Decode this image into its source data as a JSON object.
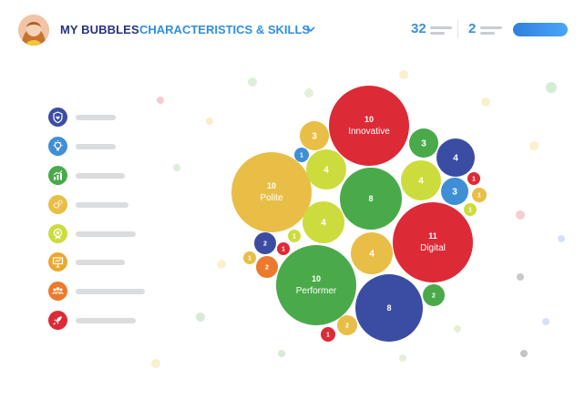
{
  "header": {
    "title": "MY BUBBLES",
    "subtitle": "CHARACTERISTICS & SKILLS",
    "stat_primary": "32",
    "stat_secondary": "2"
  },
  "colors": {
    "navy": "#26347e",
    "blue": "#2f8fe0",
    "red": "#dd2a37",
    "green": "#4aaa4a",
    "yellow": "#e9be46",
    "lime": "#cddc3d",
    "indigo": "#3b4da3",
    "orange": "#ec7a2c",
    "lightblue": "#3f8fd6"
  },
  "sidebar": {
    "items": [
      {
        "icon": "shield-heart-icon",
        "color": "#3b4da3"
      },
      {
        "icon": "lightbulb-icon",
        "color": "#3f8fd6"
      },
      {
        "icon": "growth-chart-icon",
        "color": "#4aaa4a"
      },
      {
        "icon": "gears-icon",
        "color": "#e9be46"
      },
      {
        "icon": "award-badge-icon",
        "color": "#cddc3d"
      },
      {
        "icon": "presentation-icon",
        "color": "#e9a92f"
      },
      {
        "icon": "team-icon",
        "color": "#ec7a2c"
      },
      {
        "icon": "rocket-icon",
        "color": "#dd2a37"
      }
    ]
  },
  "bubbles": [
    {
      "value": "10",
      "label": "Innovative",
      "color": "#dd2a37"
    },
    {
      "value": "10",
      "label": "Polite",
      "color": "#e9be46"
    },
    {
      "value": "11",
      "label": "Digital",
      "color": "#dd2a37"
    },
    {
      "value": "10",
      "label": "Performer",
      "color": "#4aaa4a"
    },
    {
      "value": "8",
      "label": "",
      "color": "#4aaa4a"
    },
    {
      "value": "8",
      "label": "",
      "color": "#3b4da3"
    },
    {
      "value": "3",
      "label": "",
      "color": "#e9be46"
    },
    {
      "value": "3",
      "label": "",
      "color": "#4aaa4a"
    },
    {
      "value": "4",
      "label": "",
      "color": "#3b4da3"
    },
    {
      "value": "4",
      "label": "",
      "color": "#cddc3d"
    },
    {
      "value": "4",
      "label": "",
      "color": "#cddc3d"
    },
    {
      "value": "4",
      "label": "",
      "color": "#cddc3d"
    },
    {
      "value": "4",
      "label": "",
      "color": "#e9be46"
    },
    {
      "value": "3",
      "label": "",
      "color": "#3f8fd6"
    },
    {
      "value": "1",
      "label": "",
      "color": "#3f8fd6"
    },
    {
      "value": "1",
      "label": "",
      "color": "#dd2a37"
    },
    {
      "value": "1",
      "label": "",
      "color": "#e9be46"
    },
    {
      "value": "1",
      "label": "",
      "color": "#cddc3d"
    },
    {
      "value": "2",
      "label": "",
      "color": "#3b4da3"
    },
    {
      "value": "1",
      "label": "",
      "color": "#dd2a37"
    },
    {
      "value": "1",
      "label": "",
      "color": "#cddc3d"
    },
    {
      "value": "1",
      "label": "",
      "color": "#e9be46"
    },
    {
      "value": "2",
      "label": "",
      "color": "#ec7a2c"
    },
    {
      "value": "2",
      "label": "",
      "color": "#4aaa4a"
    },
    {
      "value": "2",
      "label": "",
      "color": "#e9be46"
    },
    {
      "value": "1",
      "label": "",
      "color": "#dd2a37"
    }
  ]
}
